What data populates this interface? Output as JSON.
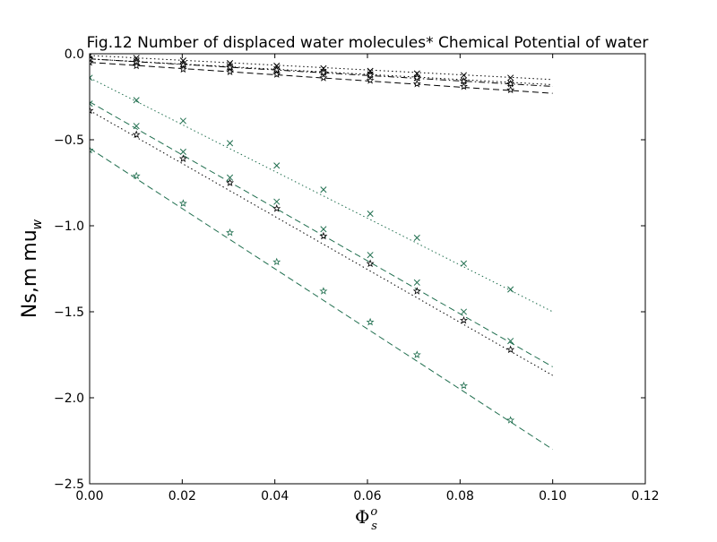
{
  "chart_data": {
    "type": "line",
    "title": "Fig.12 Number of displaced water molecules* Chemical Potential of water",
    "xlabel": "Φ",
    "xlabel_sup": "o",
    "xlabel_sub": "s",
    "ylabel": "Ns,m mu",
    "ylabel_sub": "w",
    "xlim": [
      0.0,
      0.12
    ],
    "ylim": [
      -2.5,
      0.0
    ],
    "xticks": [
      "0.00",
      "0.02",
      "0.04",
      "0.06",
      "0.08",
      "0.10",
      "0.12"
    ],
    "yticks": [
      "0.0",
      "−0.5",
      "−1.0",
      "−1.5",
      "−2.0",
      "−2.5"
    ],
    "xtick_values": [
      0.0,
      0.02,
      0.04,
      0.06,
      0.08,
      0.1,
      0.12
    ],
    "ytick_values": [
      0.0,
      -0.5,
      -1.0,
      -1.5,
      -2.0,
      -2.5
    ],
    "grid": false,
    "series": [
      {
        "color": "#000000",
        "linestyle": "dotted",
        "marker": "x",
        "line": [
          [
            0.0,
            -0.01
          ],
          [
            0.1,
            -0.15
          ]
        ],
        "markers": [
          [
            0.0,
            -0.01
          ],
          [
            0.0101,
            -0.025
          ],
          [
            0.0202,
            -0.04
          ],
          [
            0.0303,
            -0.055
          ],
          [
            0.0404,
            -0.07
          ],
          [
            0.0505,
            -0.085
          ],
          [
            0.0606,
            -0.1
          ],
          [
            0.0707,
            -0.115
          ],
          [
            0.0808,
            -0.125
          ],
          [
            0.0909,
            -0.14
          ]
        ]
      },
      {
        "color": "#000000",
        "linestyle": "dashdot",
        "marker": "x",
        "line": [
          [
            0.0,
            -0.03
          ],
          [
            0.1,
            -0.19
          ]
        ],
        "markers": [
          [
            0.0,
            -0.03
          ],
          [
            0.0101,
            -0.045
          ],
          [
            0.0202,
            -0.06
          ],
          [
            0.0303,
            -0.075
          ],
          [
            0.0404,
            -0.09
          ],
          [
            0.0505,
            -0.105
          ],
          [
            0.0606,
            -0.12
          ],
          [
            0.0707,
            -0.14
          ],
          [
            0.0808,
            -0.155
          ],
          [
            0.0909,
            -0.17
          ]
        ]
      },
      {
        "color": "#000000",
        "linestyle": "dotted",
        "marker": "star",
        "line": [
          [
            0.0,
            -0.03
          ],
          [
            0.1,
            -0.18
          ]
        ],
        "markers": [
          [
            0.0,
            -0.03
          ],
          [
            0.0101,
            -0.05
          ],
          [
            0.0202,
            -0.065
          ],
          [
            0.0303,
            -0.08
          ],
          [
            0.0404,
            -0.095
          ],
          [
            0.0505,
            -0.11
          ],
          [
            0.0606,
            -0.125
          ],
          [
            0.0707,
            -0.14
          ],
          [
            0.0808,
            -0.16
          ],
          [
            0.0909,
            -0.175
          ]
        ]
      },
      {
        "color": "#000000",
        "linestyle": "dashed",
        "marker": "star",
        "line": [
          [
            0.0,
            -0.05
          ],
          [
            0.1,
            -0.23
          ]
        ],
        "markers": [
          [
            0.0,
            -0.05
          ],
          [
            0.0101,
            -0.07
          ],
          [
            0.0202,
            -0.09
          ],
          [
            0.0303,
            -0.105
          ],
          [
            0.0404,
            -0.12
          ],
          [
            0.0505,
            -0.14
          ],
          [
            0.0606,
            -0.155
          ],
          [
            0.0707,
            -0.175
          ],
          [
            0.0808,
            -0.19
          ],
          [
            0.0909,
            -0.21
          ]
        ]
      },
      {
        "color": "#1f6e4e",
        "linestyle": "dotted",
        "marker": "x",
        "line": [
          [
            0.0,
            -0.14
          ],
          [
            0.1,
            -1.5
          ]
        ],
        "markers": [
          [
            0.0,
            -0.14
          ],
          [
            0.0101,
            -0.27
          ],
          [
            0.0202,
            -0.39
          ],
          [
            0.0303,
            -0.52
          ],
          [
            0.0404,
            -0.65
          ],
          [
            0.0505,
            -0.79
          ],
          [
            0.0606,
            -0.93
          ],
          [
            0.0707,
            -1.07
          ],
          [
            0.0808,
            -1.22
          ],
          [
            0.0909,
            -1.37
          ]
        ]
      },
      {
        "color": "#1f6e4e",
        "linestyle": "dashed",
        "marker": "x",
        "line": [
          [
            0.0,
            -0.28
          ],
          [
            0.1,
            -1.82
          ]
        ],
        "markers": [
          [
            0.0,
            -0.29
          ],
          [
            0.0101,
            -0.42
          ],
          [
            0.0202,
            -0.57
          ],
          [
            0.0303,
            -0.72
          ],
          [
            0.0404,
            -0.86
          ],
          [
            0.0505,
            -1.02
          ],
          [
            0.0606,
            -1.17
          ],
          [
            0.0707,
            -1.33
          ],
          [
            0.0808,
            -1.5
          ],
          [
            0.0909,
            -1.67
          ]
        ]
      },
      {
        "color": "#000000",
        "linestyle": "dotted",
        "marker": "star",
        "line": [
          [
            0.0,
            -0.33
          ],
          [
            0.1,
            -1.87
          ]
        ],
        "markers": [
          [
            0.0,
            -0.33
          ],
          [
            0.0101,
            -0.47
          ],
          [
            0.0202,
            -0.61
          ],
          [
            0.0303,
            -0.75
          ],
          [
            0.0404,
            -0.9
          ],
          [
            0.0505,
            -1.06
          ],
          [
            0.0606,
            -1.22
          ],
          [
            0.0707,
            -1.38
          ],
          [
            0.0808,
            -1.55
          ],
          [
            0.0909,
            -1.72
          ]
        ]
      },
      {
        "color": "#1f6e4e",
        "linestyle": "dashed",
        "marker": "star",
        "line": [
          [
            0.0,
            -0.55
          ],
          [
            0.1,
            -2.3
          ]
        ],
        "markers": [
          [
            0.0,
            -0.56
          ],
          [
            0.0101,
            -0.71
          ],
          [
            0.0202,
            -0.87
          ],
          [
            0.0303,
            -1.04
          ],
          [
            0.0404,
            -1.21
          ],
          [
            0.0505,
            -1.38
          ],
          [
            0.0606,
            -1.56
          ],
          [
            0.0707,
            -1.75
          ],
          [
            0.0808,
            -1.93
          ],
          [
            0.0909,
            -2.13
          ]
        ]
      }
    ]
  }
}
